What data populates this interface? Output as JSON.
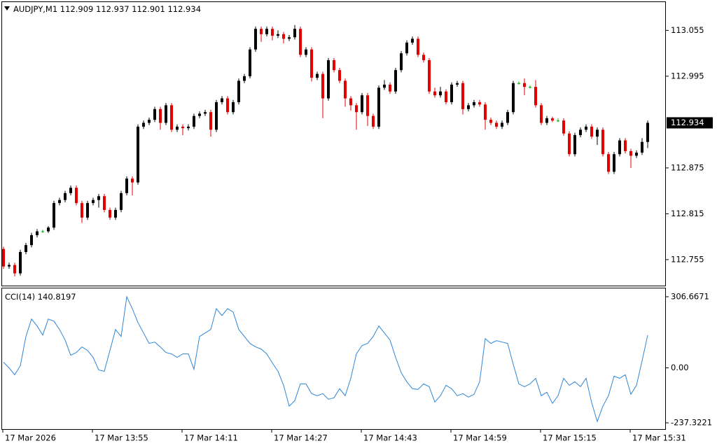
{
  "chart_data": [
    {
      "type": "candlestick",
      "title": "AUDJPY,M1",
      "ylim": [
        112.721,
        113.092
      ],
      "yticks": [
        113.055,
        112.995,
        112.875,
        112.815,
        112.755
      ],
      "xticks": [
        {
          "value": 0,
          "label": "17 Mar 2026"
        },
        {
          "value": 16,
          "label": "17 Mar 13:55"
        },
        {
          "value": 32,
          "label": "17 Mar 14:11"
        },
        {
          "value": 48,
          "label": "17 Mar 14:27"
        },
        {
          "value": 64,
          "label": "17 Mar 14:43"
        },
        {
          "value": 80,
          "label": "17 Mar 14:59"
        },
        {
          "value": 96,
          "label": "17 Mar 15:15"
        },
        {
          "value": 112,
          "label": "17 Mar 15:31"
        }
      ],
      "up_color": "#000000",
      "down_color": "#e00000",
      "doji_color": "#00b000",
      "candles": [
        [
          112.769,
          112.772,
          112.743,
          112.746
        ],
        [
          112.746,
          112.751,
          112.743,
          112.748
        ],
        [
          112.748,
          112.751,
          112.733,
          112.737
        ],
        [
          112.737,
          112.768,
          112.734,
          112.765
        ],
        [
          112.765,
          112.777,
          112.762,
          112.774
        ],
        [
          112.774,
          112.79,
          112.771,
          112.787
        ],
        [
          112.787,
          112.795,
          112.784,
          112.792
        ],
        [
          112.792,
          112.794,
          112.79,
          112.792
        ],
        [
          112.792,
          112.799,
          112.79,
          112.797
        ],
        [
          112.797,
          112.832,
          112.794,
          112.829
        ],
        [
          112.829,
          112.836,
          112.826,
          112.833
        ],
        [
          112.833,
          112.845,
          112.83,
          112.842
        ],
        [
          112.842,
          112.852,
          112.839,
          112.849
        ],
        [
          112.849,
          112.852,
          112.826,
          112.829
        ],
        [
          112.829,
          112.832,
          112.803,
          112.81
        ],
        [
          112.81,
          112.832,
          112.807,
          112.829
        ],
        [
          112.829,
          112.836,
          112.826,
          112.833
        ],
        [
          112.833,
          112.841,
          112.823,
          112.838
        ],
        [
          112.838,
          112.841,
          112.817,
          112.82
        ],
        [
          112.82,
          112.823,
          112.807,
          112.81
        ],
        [
          112.81,
          112.823,
          112.807,
          112.82
        ],
        [
          112.82,
          112.845,
          112.817,
          112.842
        ],
        [
          112.842,
          112.864,
          112.839,
          112.861
        ],
        [
          112.861,
          112.864,
          112.839,
          112.856
        ],
        [
          112.856,
          112.932,
          112.853,
          112.929
        ],
        [
          112.929,
          112.937,
          112.926,
          112.934
        ],
        [
          112.934,
          112.941,
          112.931,
          112.938
        ],
        [
          112.938,
          112.955,
          112.935,
          112.952
        ],
        [
          112.952,
          112.955,
          112.925,
          112.934
        ],
        [
          112.934,
          112.96,
          112.931,
          112.957
        ],
        [
          112.957,
          112.96,
          112.922,
          112.925
        ],
        [
          112.925,
          112.932,
          112.922,
          112.929
        ],
        [
          112.929,
          112.932,
          112.918,
          112.927
        ],
        [
          112.927,
          112.932,
          112.924,
          112.929
        ],
        [
          112.929,
          112.946,
          112.926,
          112.943
        ],
        [
          112.943,
          112.949,
          112.94,
          112.946
        ],
        [
          112.946,
          112.951,
          112.943,
          112.948
        ],
        [
          112.948,
          112.951,
          112.916,
          112.925
        ],
        [
          112.925,
          112.964,
          112.922,
          112.961
        ],
        [
          112.961,
          112.969,
          112.958,
          112.966
        ],
        [
          112.966,
          112.969,
          112.945,
          112.948
        ],
        [
          112.948,
          112.964,
          112.945,
          112.961
        ],
        [
          112.961,
          112.992,
          112.958,
          112.989
        ],
        [
          112.989,
          112.998,
          112.986,
          112.995
        ],
        [
          112.995,
          113.033,
          112.992,
          113.03
        ],
        [
          113.03,
          113.06,
          113.027,
          113.057
        ],
        [
          113.057,
          113.06,
          113.04,
          113.05
        ],
        [
          113.05,
          113.06,
          113.047,
          113.057
        ],
        [
          113.057,
          113.06,
          113.042,
          113.048
        ],
        [
          113.048,
          113.055,
          113.045,
          113.05
        ],
        [
          113.05,
          113.053,
          113.038,
          113.044
        ],
        [
          113.044,
          113.049,
          113.041,
          113.046
        ],
        [
          113.046,
          113.062,
          113.043,
          113.057
        ],
        [
          113.057,
          113.06,
          113.02,
          113.023
        ],
        [
          113.023,
          113.033,
          113.02,
          113.03
        ],
        [
          113.03,
          113.033,
          112.988,
          112.993
        ],
        [
          112.993,
          113.001,
          112.99,
          112.998
        ],
        [
          112.998,
          113.001,
          112.94,
          112.966
        ],
        [
          112.966,
          113.019,
          112.963,
          113.016
        ],
        [
          113.016,
          113.019,
          113.0,
          113.003
        ],
        [
          113.003,
          113.006,
          112.986,
          112.989
        ],
        [
          112.989,
          112.992,
          112.955,
          112.966
        ],
        [
          112.966,
          112.969,
          112.95,
          112.957
        ],
        [
          112.957,
          112.96,
          112.925,
          112.948
        ],
        [
          112.948,
          112.973,
          112.945,
          112.97
        ],
        [
          112.97,
          112.973,
          112.93,
          112.943
        ],
        [
          112.943,
          112.946,
          112.926,
          112.929
        ],
        [
          112.929,
          112.983,
          112.926,
          112.98
        ],
        [
          112.98,
          112.99,
          112.977,
          112.984
        ],
        [
          112.984,
          112.987,
          112.972,
          112.975
        ],
        [
          112.975,
          113.006,
          112.972,
          113.003
        ],
        [
          113.003,
          113.028,
          113.0,
          113.025
        ],
        [
          113.025,
          113.042,
          113.022,
          113.039
        ],
        [
          113.039,
          113.047,
          113.036,
          113.044
        ],
        [
          113.044,
          113.047,
          113.02,
          113.023
        ],
        [
          113.023,
          113.026,
          113.013,
          113.016
        ],
        [
          113.016,
          113.019,
          112.972,
          112.975
        ],
        [
          112.975,
          112.98,
          112.967,
          112.97
        ],
        [
          112.97,
          112.981,
          112.967,
          112.975
        ],
        [
          112.975,
          112.978,
          112.958,
          112.961
        ],
        [
          112.961,
          112.987,
          112.958,
          112.984
        ],
        [
          112.984,
          112.989,
          112.981,
          112.986
        ],
        [
          112.986,
          112.989,
          112.945,
          112.952
        ],
        [
          112.952,
          112.96,
          112.949,
          112.957
        ],
        [
          112.957,
          112.964,
          112.954,
          112.961
        ],
        [
          112.961,
          112.964,
          112.955,
          112.958
        ],
        [
          112.958,
          112.961,
          112.925,
          112.938
        ],
        [
          112.938,
          112.941,
          112.931,
          112.934
        ],
        [
          112.934,
          112.937,
          112.926,
          112.929
        ],
        [
          112.929,
          112.937,
          112.926,
          112.934
        ],
        [
          112.934,
          112.951,
          112.931,
          112.948
        ],
        [
          112.948,
          112.989,
          112.945,
          112.986
        ],
        [
          112.986,
          112.988,
          112.984,
          112.986
        ],
        [
          112.986,
          112.992,
          112.97,
          112.981
        ],
        [
          112.981,
          112.983,
          112.979,
          112.981
        ],
        [
          112.981,
          112.99,
          112.954,
          112.957
        ],
        [
          112.957,
          112.96,
          112.931,
          112.934
        ],
        [
          112.934,
          112.943,
          112.931,
          112.94
        ],
        [
          112.94,
          112.942,
          112.935,
          112.937
        ],
        [
          112.937,
          112.94,
          112.935,
          112.937
        ],
        [
          112.937,
          112.94,
          112.917,
          112.92
        ],
        [
          112.92,
          112.923,
          112.89,
          112.893
        ],
        [
          112.893,
          112.921,
          112.89,
          112.918
        ],
        [
          112.918,
          112.928,
          112.915,
          112.925
        ],
        [
          112.925,
          112.932,
          112.922,
          112.929
        ],
        [
          112.929,
          112.932,
          112.913,
          112.916
        ],
        [
          112.916,
          112.928,
          112.905,
          112.925
        ],
        [
          112.925,
          112.928,
          112.89,
          112.893
        ],
        [
          112.893,
          112.896,
          112.867,
          112.87
        ],
        [
          112.87,
          112.896,
          112.867,
          112.893
        ],
        [
          112.893,
          112.914,
          112.89,
          112.911
        ],
        [
          112.911,
          112.914,
          112.894,
          112.897
        ],
        [
          112.897,
          112.9,
          112.875,
          112.891
        ],
        [
          112.891,
          112.898,
          112.888,
          112.895
        ],
        [
          112.895,
          112.914,
          112.892,
          112.909
        ],
        [
          112.909,
          112.937,
          112.901,
          112.934
        ]
      ]
    },
    {
      "type": "line",
      "title": "CCI(14)",
      "color": "#2f86d6",
      "ylim": [
        -264.3,
        342.7
      ],
      "yticks": [
        306.6671,
        {
          "value": 0,
          "label": "0.00"
        },
        -237.3221
      ],
      "values": [
        24,
        0,
        -30.1,
        9,
        135.3,
        210.4,
        180.4,
        141.3,
        210.4,
        201.4,
        165.3,
        120.2,
        54.1,
        66.1,
        90.2,
        75.2,
        45.1,
        -9,
        -15,
        75.2,
        165.3,
        135.3,
        306.6,
        255.5,
        195.4,
        150.3,
        105.2,
        111.2,
        90.2,
        66.1,
        60.1,
        45.1,
        60.1,
        60.1,
        -6,
        135.3,
        150.3,
        165.3,
        255.5,
        225.5,
        255.5,
        240.5,
        165.3,
        135.3,
        105.2,
        90.2,
        81.2,
        60.1,
        21,
        -15,
        -75.2,
        -165.3,
        -141.3,
        -69.1,
        -69.1,
        -111.2,
        -120.2,
        -111.2,
        -135.3,
        -129.3,
        -90.2,
        -120.2,
        -45.1,
        60.1,
        96.2,
        105.2,
        135.3,
        180.4,
        150.3,
        120.2,
        45.1,
        -21,
        -60.1,
        -90.2,
        -93.2,
        -69.1,
        -81.2,
        -147.3,
        -120.2,
        -75.2,
        -90.2,
        -120.2,
        -111.2,
        -126.3,
        -114.2,
        -60.1,
        126.3,
        105.2,
        117.2,
        111.2,
        105.2,
        15,
        -69.1,
        -81.2,
        -69.1,
        -45.1,
        -120.2,
        -105.2,
        -153.3,
        -120.2,
        -45.1,
        -75.2,
        -60.1,
        -81.2,
        -45.1,
        -150.3,
        -231.5,
        -165.3,
        -120.2,
        -36.1,
        -45.1,
        -30.1,
        -114.2,
        -75.2,
        30.1,
        140.8197
      ]
    }
  ]
}
